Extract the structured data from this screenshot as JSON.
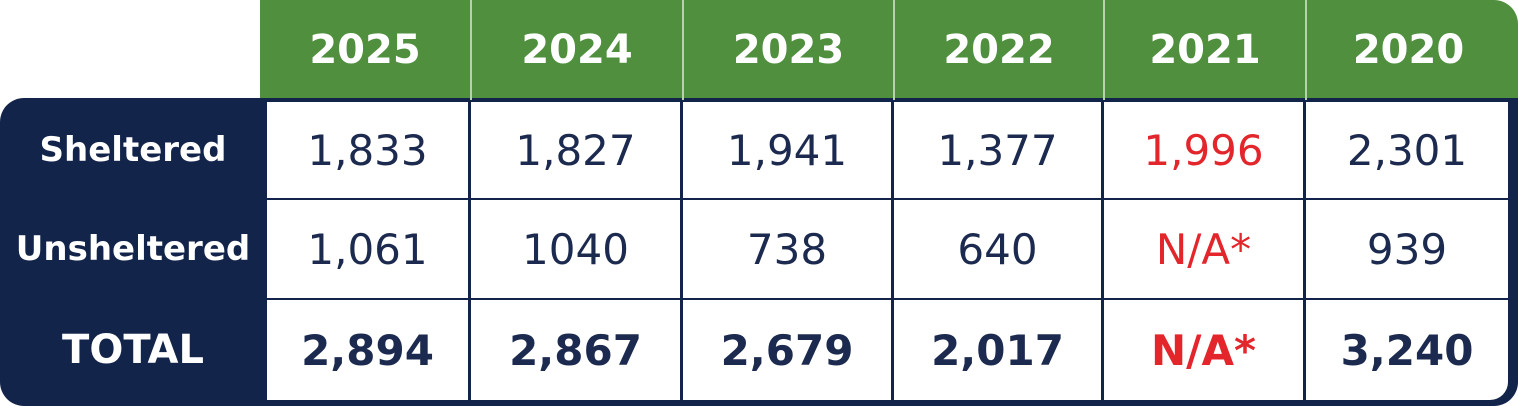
{
  "table": {
    "columns": [
      "2025",
      "2024",
      "2023",
      "2022",
      "2021",
      "2020"
    ],
    "rows": [
      {
        "label": "Sheltered",
        "cells": [
          "1,833",
          "1,827",
          "1,941",
          "1,377",
          "1,996",
          "2,301"
        ]
      },
      {
        "label": "Unsheltered",
        "cells": [
          "1,061",
          "1040",
          "738",
          "640",
          "N/A*",
          "939"
        ]
      },
      {
        "label": "TOTAL",
        "cells": [
          "2,894",
          "2,867",
          "2,679",
          "2,017",
          "N/A*",
          "3,240"
        ]
      }
    ]
  }
}
